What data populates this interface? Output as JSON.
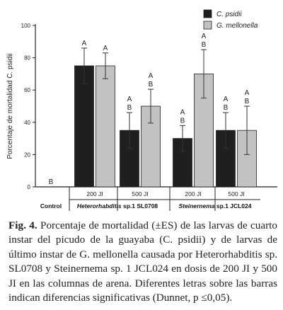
{
  "chart_data": {
    "type": "bar",
    "ylabel": "Porcentaje de mortalidad C. psidii",
    "ylim": [
      0,
      100
    ],
    "yticks": [
      0,
      20,
      40,
      60,
      80,
      100
    ],
    "categories": [
      {
        "group": "Control",
        "dose": ""
      },
      {
        "group": "Heterorhabditis sp.1 SL0708",
        "dose": "200 JI"
      },
      {
        "group": "Heterorhabditis sp.1 SL0708",
        "dose": "500 JI"
      },
      {
        "group": "Steinernema sp.1 JCL024",
        "dose": "200 JI"
      },
      {
        "group": "Steinernema sp.1 JCL024",
        "dose": "500 JI"
      }
    ],
    "group_labels": [
      "Control",
      "Heterorhabditis sp.1 SL0708",
      "Steinernema sp.1 JCL024"
    ],
    "series": [
      {
        "name": "C. psidii",
        "color": "#1f1f1f",
        "values": [
          0,
          75,
          35,
          30,
          35
        ],
        "errors": [
          0,
          11,
          11,
          8,
          11
        ],
        "letters": [
          "B",
          "A",
          "A\nB",
          "A\nB",
          "A\nB"
        ]
      },
      {
        "name": "G. mellonella",
        "color": "#c2c2c2",
        "values": [
          null,
          75,
          50,
          70,
          35
        ],
        "errors": [
          null,
          8,
          10.5,
          15,
          15
        ],
        "letters": [
          null,
          "A",
          "A\nB",
          "A\nB",
          "A\nB"
        ]
      }
    ],
    "legend_position": "top-right",
    "grid": false
  },
  "caption": {
    "label": "Fig. 4.",
    "text": "Porcentaje de mortalidad (±ES) de las larvas de cuarto instar del picudo de la guayaba (C. psidii) y de larvas de último instar de G. mellonella causada por Heterorhabditis sp. SL0708 y Steinernema sp. 1 JCL024 en dosis de 200 JI y 500 JI en las columnas de arena. Diferentes letras sobre las barras indican diferencias significativas (Dunnet, p ≤0,05)."
  }
}
